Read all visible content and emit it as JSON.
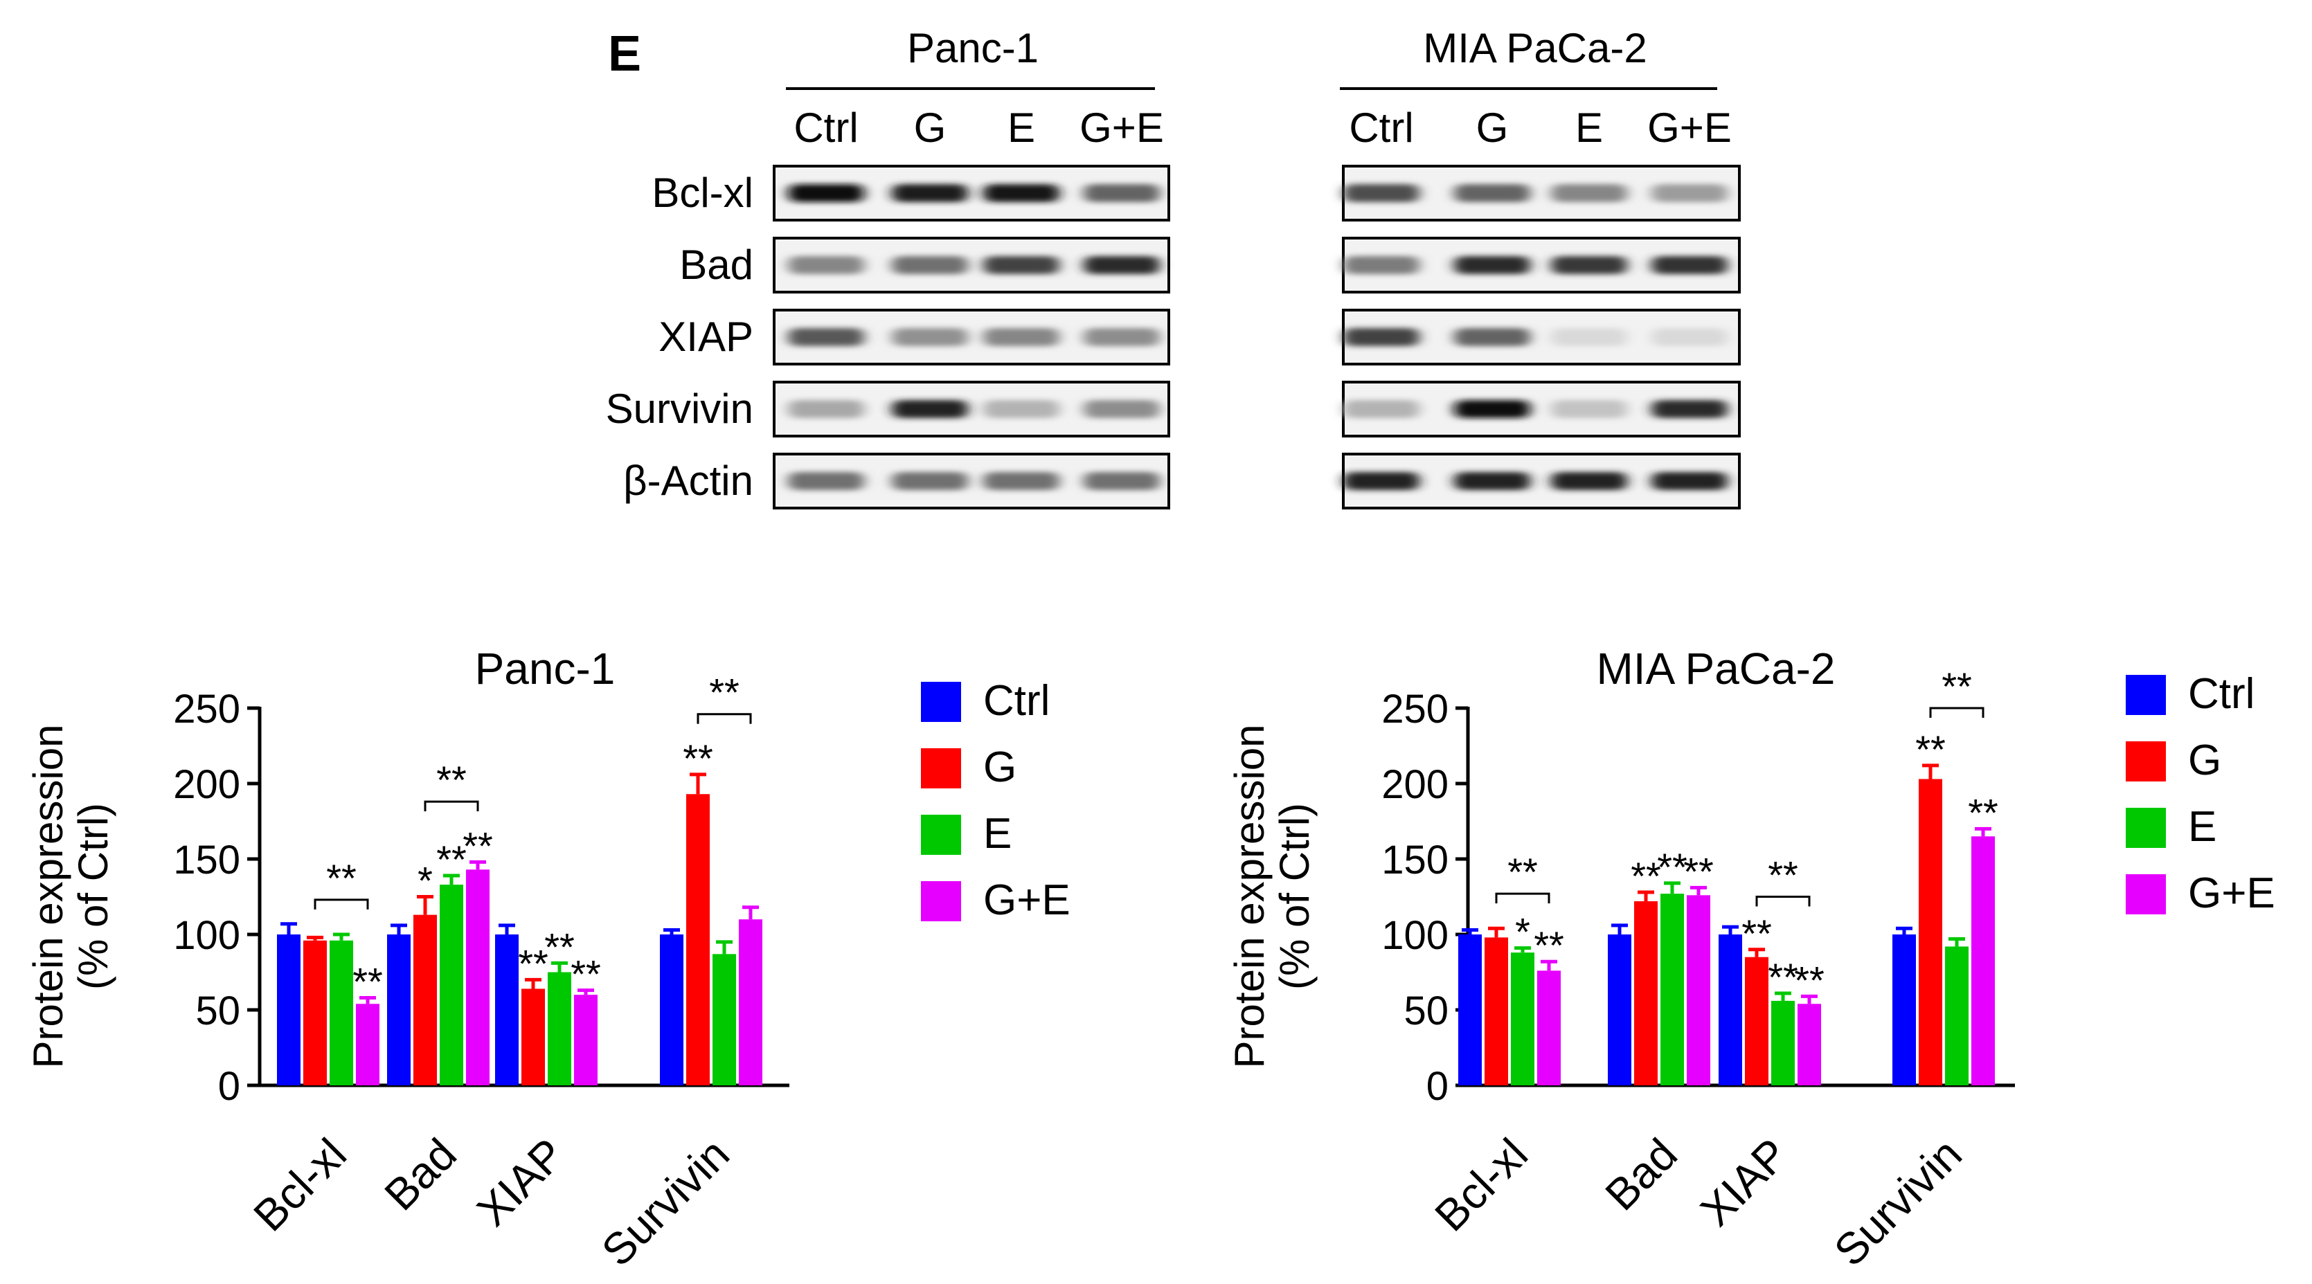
{
  "panel_label": "E",
  "blots": [
    {
      "cell_line": "Panc-1",
      "lanes": [
        "Ctrl",
        "G",
        "E",
        "G+E"
      ],
      "rows": [
        {
          "label": "Bcl-xl",
          "intensity": [
            1.0,
            0.92,
            0.95,
            0.6
          ]
        },
        {
          "label": "Bad",
          "intensity": [
            0.45,
            0.55,
            0.75,
            0.85
          ]
        },
        {
          "label": "XIAP",
          "intensity": [
            0.65,
            0.4,
            0.45,
            0.42
          ]
        },
        {
          "label": "Survivin",
          "intensity": [
            0.3,
            0.9,
            0.25,
            0.42
          ]
        },
        {
          "label": "β-Actin",
          "intensity": [
            0.55,
            0.55,
            0.55,
            0.55
          ]
        }
      ]
    },
    {
      "cell_line": "MIA PaCa-2",
      "lanes": [
        "Ctrl",
        "G",
        "E",
        "G+E"
      ],
      "rows": [
        {
          "label": "Bcl-xl",
          "intensity": [
            0.7,
            0.6,
            0.45,
            0.35
          ]
        },
        {
          "label": "Bad",
          "intensity": [
            0.5,
            0.85,
            0.8,
            0.82
          ]
        },
        {
          "label": "XIAP",
          "intensity": [
            0.75,
            0.6,
            0.08,
            0.08
          ]
        },
        {
          "label": "Survivin",
          "intensity": [
            0.25,
            1.0,
            0.18,
            0.85
          ]
        },
        {
          "label": "β-Actin",
          "intensity": [
            0.9,
            0.9,
            0.9,
            0.9
          ]
        }
      ]
    }
  ],
  "colors": {
    "Ctrl": "#0000ff",
    "G": "#ff0000",
    "E": "#00c800",
    "G+E": "#e600ff",
    "error": "#000000"
  },
  "chart_data": [
    {
      "type": "bar",
      "title": "Panc-1",
      "ylabel_line1": "Protein expression",
      "ylabel_line2": "(% of Ctrl)",
      "ylim": [
        0,
        250
      ],
      "yticks": [
        "0",
        "50",
        "100",
        "150",
        "200",
        "250"
      ],
      "categories": [
        "Bcl-xl",
        "Bad",
        "XIAP",
        "Survivin"
      ],
      "series": [
        {
          "name": "Ctrl",
          "values": [
            100,
            100,
            100,
            100
          ],
          "errors": [
            7,
            6,
            6,
            3
          ]
        },
        {
          "name": "G",
          "values": [
            96,
            113,
            64,
            193
          ],
          "errors": [
            2,
            12,
            6,
            13
          ]
        },
        {
          "name": "E",
          "values": [
            96,
            133,
            75,
            87
          ],
          "errors": [
            4,
            6,
            6,
            8
          ]
        },
        {
          "name": "G+E",
          "values": [
            54,
            143,
            60,
            110
          ],
          "errors": [
            4,
            5,
            3,
            8
          ]
        }
      ],
      "markers": [
        {
          "category": 0,
          "series": 3,
          "text": "**"
        },
        {
          "category": 1,
          "series": 1,
          "text": "*"
        },
        {
          "category": 1,
          "series": 2,
          "text": "**"
        },
        {
          "category": 1,
          "series": 3,
          "text": "**"
        },
        {
          "category": 2,
          "series": 1,
          "text": "**"
        },
        {
          "category": 2,
          "series": 2,
          "text": "**"
        },
        {
          "category": 2,
          "series": 3,
          "text": "**"
        },
        {
          "category": 3,
          "series": 1,
          "text": "**"
        }
      ],
      "brackets": [
        {
          "category": 0,
          "from": 1,
          "to": 3,
          "y": 123,
          "text": "**"
        },
        {
          "category": 1,
          "from": 1,
          "to": 3,
          "y": 188,
          "text": "**"
        },
        {
          "category": 3,
          "from": 1,
          "to": 3,
          "y": 246,
          "text": "**"
        }
      ],
      "legend": [
        "Ctrl",
        "G",
        "E",
        "G+E"
      ]
    },
    {
      "type": "bar",
      "title": "MIA PaCa-2",
      "ylabel_line1": "Protein expression",
      "ylabel_line2": "(% of Ctrl)",
      "ylim": [
        0,
        250
      ],
      "yticks": [
        "0",
        "50",
        "100",
        "150",
        "200",
        "250"
      ],
      "categories": [
        "Bcl-xl",
        "Bad",
        "XIAP",
        "Survivin"
      ],
      "series": [
        {
          "name": "Ctrl",
          "values": [
            100,
            100,
            100,
            100
          ],
          "errors": [
            3,
            6,
            5,
            4
          ]
        },
        {
          "name": "G",
          "values": [
            98,
            122,
            85,
            203
          ],
          "errors": [
            6,
            6,
            5,
            9
          ]
        },
        {
          "name": "E",
          "values": [
            88,
            127,
            56,
            92
          ],
          "errors": [
            3,
            7,
            5,
            5
          ]
        },
        {
          "name": "G+E",
          "values": [
            76,
            126,
            54,
            165
          ],
          "errors": [
            6,
            5,
            5,
            5
          ]
        }
      ],
      "markers": [
        {
          "category": 0,
          "series": 2,
          "text": "*"
        },
        {
          "category": 0,
          "series": 3,
          "text": "**"
        },
        {
          "category": 1,
          "series": 1,
          "text": "**"
        },
        {
          "category": 1,
          "series": 2,
          "text": "**"
        },
        {
          "category": 1,
          "series": 3,
          "text": "**"
        },
        {
          "category": 2,
          "series": 1,
          "text": "**"
        },
        {
          "category": 2,
          "series": 2,
          "text": "**"
        },
        {
          "category": 2,
          "series": 3,
          "text": "**"
        },
        {
          "category": 3,
          "series": 1,
          "text": "**"
        },
        {
          "category": 3,
          "series": 3,
          "text": "**"
        }
      ],
      "brackets": [
        {
          "category": 0,
          "from": 1,
          "to": 3,
          "y": 127,
          "text": "**"
        },
        {
          "category": 2,
          "from": 1,
          "to": 3,
          "y": 125,
          "text": "**"
        },
        {
          "category": 3,
          "from": 1,
          "to": 3,
          "y": 250,
          "text": "**"
        }
      ],
      "legend": [
        "Ctrl",
        "G",
        "E",
        "G+E"
      ]
    }
  ]
}
